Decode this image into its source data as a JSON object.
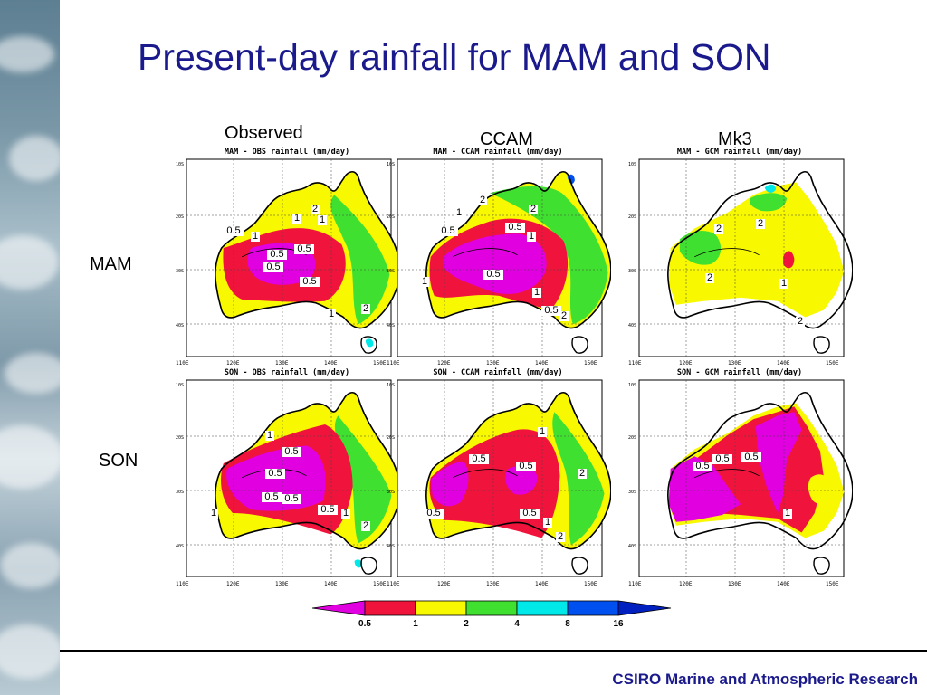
{
  "title": "Present-day rainfall for MAM and SON",
  "columns": [
    {
      "label": "Observed"
    },
    {
      "label": "CCAM"
    },
    {
      "label": "Mk3"
    }
  ],
  "rows": [
    {
      "label": "MAM"
    },
    {
      "label": "SON"
    }
  ],
  "panels": [
    {
      "id": "mam-obs",
      "header": "MAM - OBS rainfall (mm/day)",
      "contours": [
        "2",
        "1",
        "0.5",
        "1",
        "0.5",
        "0.5",
        "0.5",
        "0.5",
        "1",
        "2",
        "1"
      ]
    },
    {
      "id": "mam-ccam",
      "header": "MAM - CCAM rainfall (mm/day)",
      "contours": [
        "2",
        "2",
        "1",
        "0.5",
        "0.5",
        "1",
        "0.5",
        "1",
        "1",
        "0.5",
        "2"
      ]
    },
    {
      "id": "mam-mk3",
      "header": "MAM - GCM rainfall (mm/day)",
      "contours": [
        "2",
        "2",
        "2",
        "1",
        "2"
      ]
    },
    {
      "id": "son-obs",
      "header": "SON - OBS rainfall (mm/day)",
      "contours": [
        "1",
        "0.5",
        "0.5",
        "0.5",
        "0.5",
        "0.5",
        "1",
        "2",
        "1"
      ]
    },
    {
      "id": "son-ccam",
      "header": "SON - CCAM rainfall (mm/day)",
      "contours": [
        "1",
        "0.5",
        "0.5",
        "2",
        "0.5",
        "0.5",
        "1",
        "2"
      ]
    },
    {
      "id": "son-mk3",
      "header": "SON - GCM rainfall (mm/day)",
      "contours": [
        "0.5",
        "0.5",
        "0.5",
        "1"
      ]
    }
  ],
  "axes": {
    "x_ticks": [
      "110E",
      "120E",
      "130E",
      "140E",
      "150E"
    ],
    "y_ticks": [
      "10S",
      "20S",
      "30S",
      "40S"
    ]
  },
  "colorbar": {
    "ticks": [
      "0.5",
      "1",
      "2",
      "4",
      "8",
      "16"
    ],
    "colors": [
      "#e000e0",
      "#f0143c",
      "#f8f800",
      "#40e030",
      "#00e8e8",
      "#0050f0",
      "#0020c0"
    ]
  },
  "footer": "CSIRO Marine and Atmospheric Research"
}
